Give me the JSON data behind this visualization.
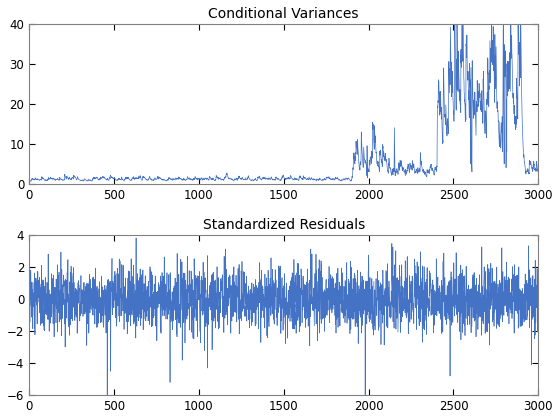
{
  "title1": "Conditional Variances",
  "title2": "Standardized Residuals",
  "n": 3000,
  "xlim": [
    0,
    3000
  ],
  "ylim1": [
    0,
    40
  ],
  "ylim2": [
    -6,
    4
  ],
  "yticks1": [
    0,
    10,
    20,
    30,
    40
  ],
  "yticks2": [
    -6,
    -4,
    -2,
    0,
    2,
    4
  ],
  "xticks": [
    0,
    500,
    1000,
    1500,
    2000,
    2500,
    3000
  ],
  "line_color": "#4472C4",
  "line_width": 0.5,
  "seed": 42,
  "background_color": "#ffffff",
  "axes_bg": "#ffffff",
  "title_fontsize": 10,
  "tick_fontsize": 8.5
}
